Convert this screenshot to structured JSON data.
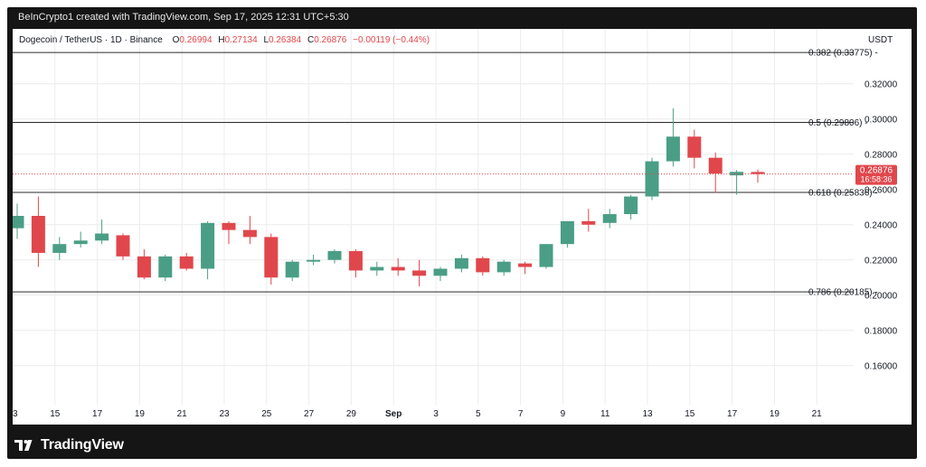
{
  "header": {
    "attribution": "BeInCrypto1 created with TradingView.com, Sep 17, 2025 12:31 UTC+5:30"
  },
  "legend": {
    "symbol": "Dogecoin / TetherUS · 1D · Binance",
    "open_label": "O",
    "open": "0.26994",
    "high_label": "H",
    "high": "0.27134",
    "low_label": "L",
    "low": "0.26384",
    "close_label": "C",
    "close": "0.26876",
    "change": "−0.00119 (−0.44%)"
  },
  "footer": {
    "brand": "TradingView"
  },
  "colors": {
    "up": "#4a9e85",
    "down": "#e0474c",
    "grid": "#ececec",
    "fib_line": "#2a2a2a",
    "price_line": "#e0474c",
    "frame": "#151515"
  },
  "chart_data": {
    "type": "candlestick",
    "currency": "USDT",
    "ylim": [
      0.145,
      0.345
    ],
    "y_ticks": [
      "0.32000",
      "0.30000",
      "0.28000",
      "0.26000",
      "0.24000",
      "0.22000",
      "0.20000",
      "0.18000",
      "0.16000"
    ],
    "x_ticks": [
      "13",
      "15",
      "17",
      "19",
      "21",
      "23",
      "25",
      "27",
      "29",
      "Sep",
      "3",
      "5",
      "7",
      "9",
      "11",
      "13",
      "15",
      "17",
      "19",
      "21"
    ],
    "fib_levels": [
      {
        "label": "0.382 (0.33775)",
        "value": 0.33775
      },
      {
        "label": "0.5 (0.29806)",
        "value": 0.29806
      },
      {
        "label": "0.618 (0.25836)",
        "value": 0.25836
      },
      {
        "label": "0.786 (0.20185)",
        "value": 0.20185
      }
    ],
    "last_price": {
      "value": 0.26876,
      "label": "0.26876",
      "countdown": "16:58:36"
    },
    "candles": [
      {
        "o": 0.238,
        "h": 0.252,
        "l": 0.232,
        "c": 0.245
      },
      {
        "o": 0.245,
        "h": 0.256,
        "l": 0.216,
        "c": 0.224
      },
      {
        "o": 0.224,
        "h": 0.233,
        "l": 0.22,
        "c": 0.229
      },
      {
        "o": 0.229,
        "h": 0.236,
        "l": 0.227,
        "c": 0.231
      },
      {
        "o": 0.231,
        "h": 0.243,
        "l": 0.229,
        "c": 0.235
      },
      {
        "o": 0.234,
        "h": 0.235,
        "l": 0.22,
        "c": 0.222
      },
      {
        "o": 0.222,
        "h": 0.226,
        "l": 0.209,
        "c": 0.21
      },
      {
        "o": 0.21,
        "h": 0.223,
        "l": 0.208,
        "c": 0.222
      },
      {
        "o": 0.222,
        "h": 0.224,
        "l": 0.214,
        "c": 0.215
      },
      {
        "o": 0.215,
        "h": 0.242,
        "l": 0.209,
        "c": 0.241
      },
      {
        "o": 0.241,
        "h": 0.242,
        "l": 0.229,
        "c": 0.237
      },
      {
        "o": 0.237,
        "h": 0.245,
        "l": 0.229,
        "c": 0.233
      },
      {
        "o": 0.233,
        "h": 0.235,
        "l": 0.206,
        "c": 0.21
      },
      {
        "o": 0.21,
        "h": 0.22,
        "l": 0.208,
        "c": 0.219
      },
      {
        "o": 0.219,
        "h": 0.223,
        "l": 0.217,
        "c": 0.22
      },
      {
        "o": 0.22,
        "h": 0.226,
        "l": 0.218,
        "c": 0.225
      },
      {
        "o": 0.225,
        "h": 0.226,
        "l": 0.21,
        "c": 0.214
      },
      {
        "o": 0.214,
        "h": 0.219,
        "l": 0.211,
        "c": 0.216
      },
      {
        "o": 0.216,
        "h": 0.221,
        "l": 0.211,
        "c": 0.214
      },
      {
        "o": 0.214,
        "h": 0.22,
        "l": 0.205,
        "c": 0.211
      },
      {
        "o": 0.211,
        "h": 0.216,
        "l": 0.208,
        "c": 0.215
      },
      {
        "o": 0.215,
        "h": 0.223,
        "l": 0.213,
        "c": 0.221
      },
      {
        "o": 0.221,
        "h": 0.222,
        "l": 0.211,
        "c": 0.213
      },
      {
        "o": 0.213,
        "h": 0.22,
        "l": 0.211,
        "c": 0.219
      },
      {
        "o": 0.218,
        "h": 0.219,
        "l": 0.212,
        "c": 0.216
      },
      {
        "o": 0.216,
        "h": 0.229,
        "l": 0.215,
        "c": 0.229
      },
      {
        "o": 0.229,
        "h": 0.242,
        "l": 0.227,
        "c": 0.242
      },
      {
        "o": 0.242,
        "h": 0.249,
        "l": 0.236,
        "c": 0.24
      },
      {
        "o": 0.241,
        "h": 0.249,
        "l": 0.238,
        "c": 0.246
      },
      {
        "o": 0.246,
        "h": 0.257,
        "l": 0.243,
        "c": 0.256
      },
      {
        "o": 0.256,
        "h": 0.278,
        "l": 0.254,
        "c": 0.276
      },
      {
        "o": 0.276,
        "h": 0.306,
        "l": 0.273,
        "c": 0.29
      },
      {
        "o": 0.29,
        "h": 0.294,
        "l": 0.272,
        "c": 0.278
      },
      {
        "o": 0.278,
        "h": 0.281,
        "l": 0.258,
        "c": 0.269
      },
      {
        "o": 0.268,
        "h": 0.271,
        "l": 0.257,
        "c": 0.27
      },
      {
        "o": 0.26994,
        "h": 0.27134,
        "l": 0.26384,
        "c": 0.26876
      }
    ]
  }
}
